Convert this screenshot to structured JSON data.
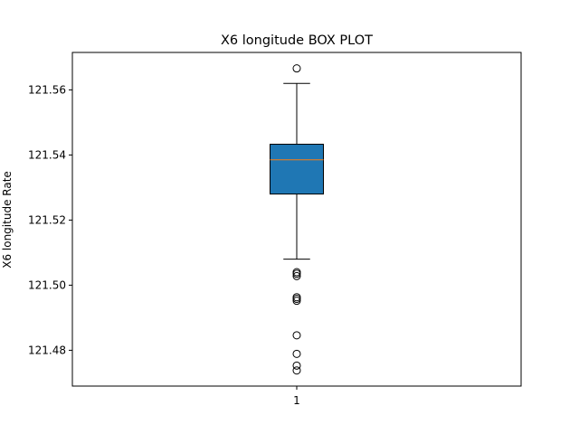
{
  "chart_data": {
    "type": "box",
    "title": "X6 longitude BOX PLOT",
    "xlabel": "",
    "ylabel": "X6 longitude Rate",
    "ylim": [
      121.469,
      121.5715
    ],
    "yticks": [
      "121.48",
      "121.50",
      "121.52",
      "121.54",
      "121.56"
    ],
    "xticks": [
      "1"
    ],
    "grid": false,
    "box_color": "#1f77b4",
    "median_color": "#ff7f0e",
    "boxes": [
      {
        "category": "1",
        "whisker_low": 121.508,
        "q1": 121.528,
        "median": 121.5385,
        "q3": 121.5433,
        "whisker_high": 121.562,
        "outliers": [
          121.5666,
          121.504,
          121.5035,
          121.5028,
          121.4963,
          121.4958,
          121.4952,
          121.4846,
          121.4789,
          121.4753,
          121.4738
        ]
      }
    ]
  }
}
